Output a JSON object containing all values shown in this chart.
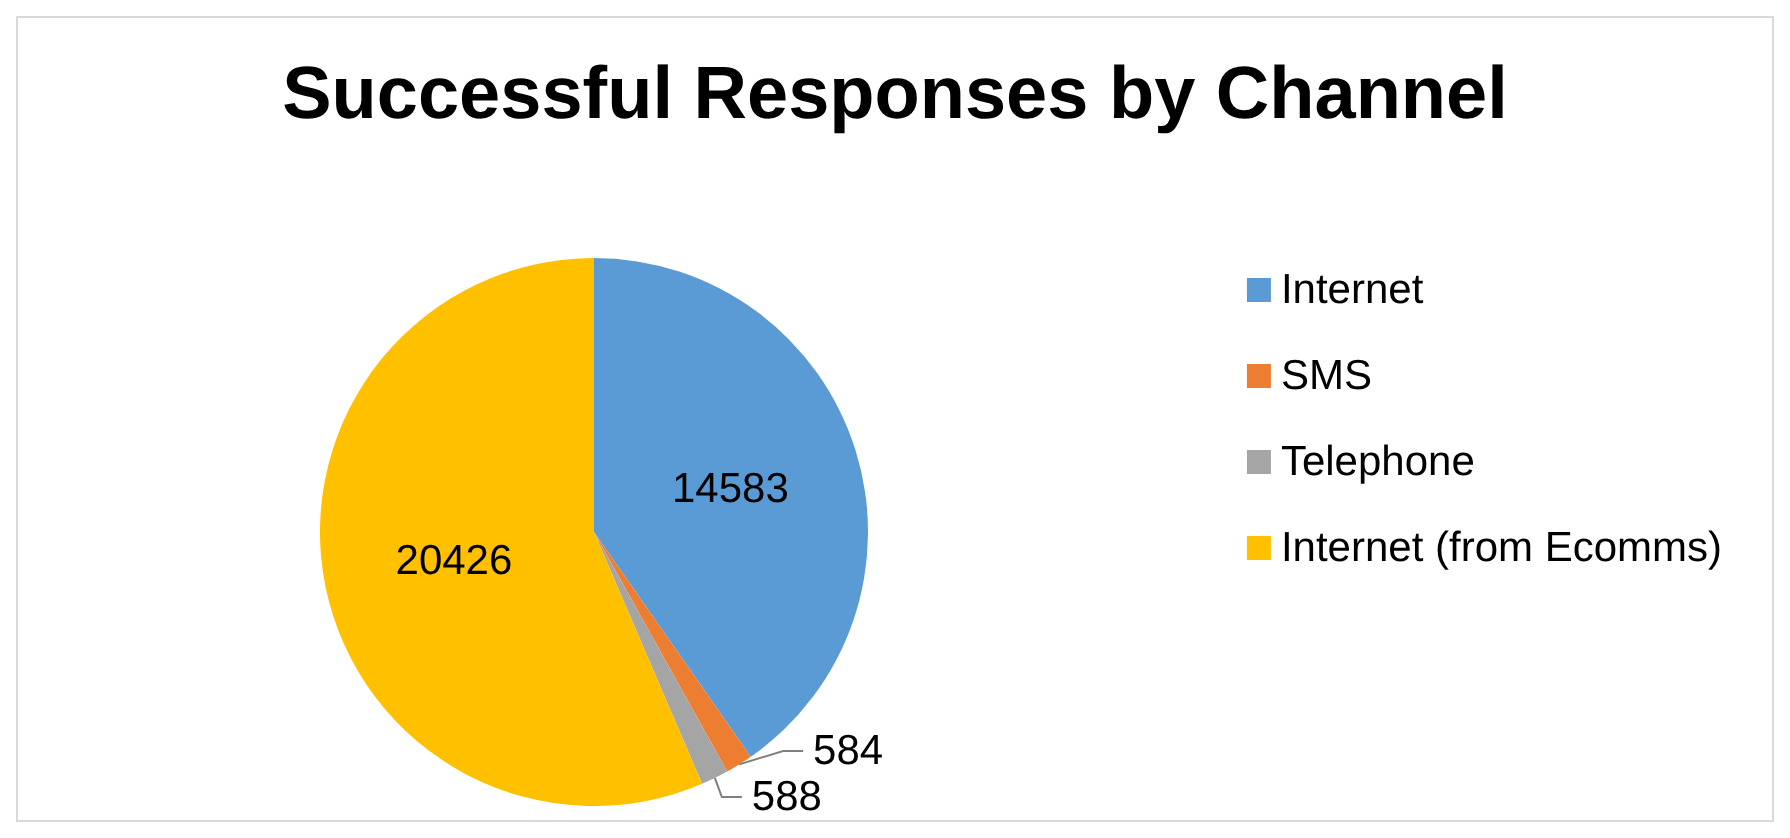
{
  "chart_data": {
    "type": "pie",
    "title": "Successful Responses by Channel",
    "categories": [
      "Internet",
      "SMS",
      "Telephone",
      "Internet (from Ecomms)"
    ],
    "values": [
      14583,
      584,
      588,
      20426
    ],
    "colors": [
      "#5b9bd5",
      "#ed7d31",
      "#a5a5a5",
      "#ffc000"
    ],
    "data_labels": true,
    "legend": "right"
  }
}
